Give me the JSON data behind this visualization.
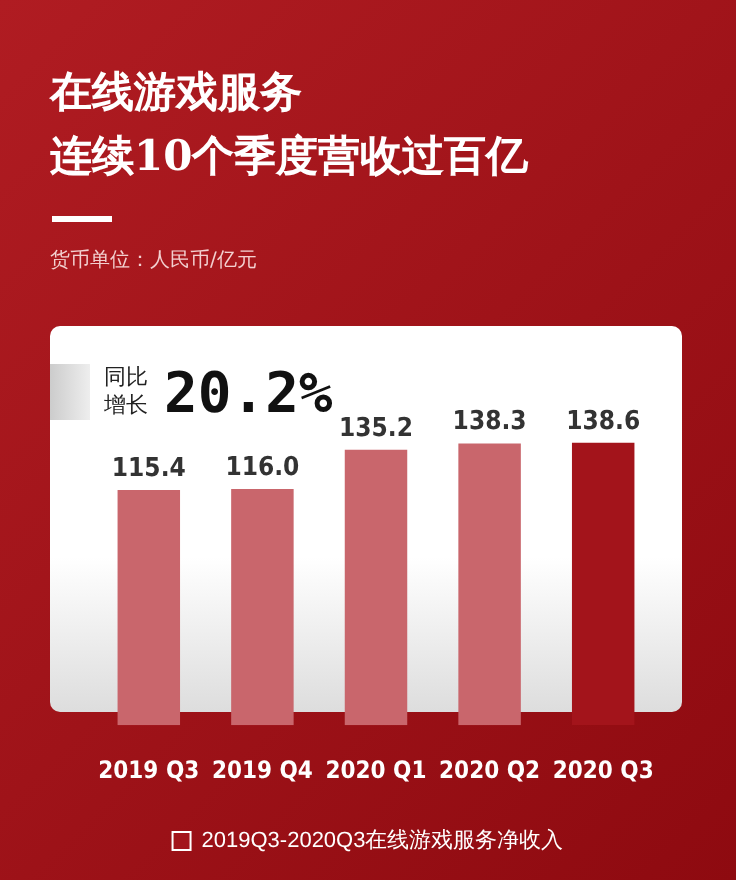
{
  "chart_data": {
    "type": "bar",
    "title": "在线游戏服务",
    "subtitle": "连续10个季度营收过百亿",
    "annotations": [
      "货币单位：人民币/亿元",
      "同比增长",
      "20.2%"
    ],
    "categories": [
      "2019 Q3",
      "2019 Q4",
      "2020 Q1",
      "2020 Q2",
      "2020 Q3"
    ],
    "series": [
      {
        "name": "2019Q3-2020Q3在线游戏服务净收入",
        "values": [
          115.4,
          116.0,
          135.2,
          138.3,
          138.6
        ],
        "value_labels": [
          "115.4",
          "116.0",
          "135.2",
          "138.3",
          "138.6"
        ],
        "colors": [
          "#c9666c",
          "#c9666c",
          "#c9666c",
          "#c9666c",
          "#a3141b"
        ]
      }
    ],
    "grid": false,
    "legend": "bottom",
    "tick_labels": "x"
  }
}
